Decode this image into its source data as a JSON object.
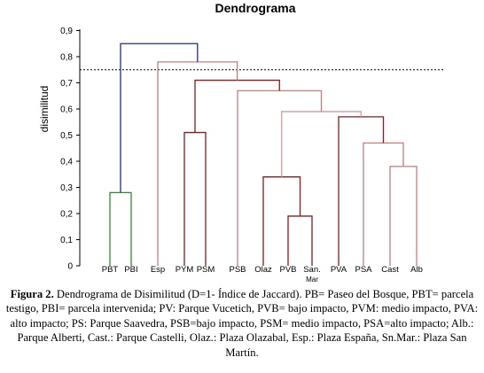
{
  "chart_data": {
    "type": "dendrogram",
    "title": "Dendrograma",
    "ylabel": "disimilitud",
    "ylim": [
      0,
      0.9
    ],
    "yticks": [
      "0",
      "0,1",
      "0,2",
      "0,3",
      "0,4",
      "0,5",
      "0,6",
      "0,7",
      "0,8",
      "0,9"
    ],
    "cut_height": 0.75,
    "leaves": [
      "PBT",
      "PBI",
      "Esp",
      "PYM",
      "PSM",
      "PSB",
      "Olaz",
      "PVB",
      "San. Mar",
      "PVA",
      "PSA",
      "Cast",
      "Alb"
    ],
    "merges": [
      {
        "a": "PBT",
        "b": "PBI",
        "height": 0.28,
        "color": "#2e8b2e"
      },
      {
        "a": "PVB",
        "b": "San. Mar",
        "height": 0.19,
        "color": "#8b1a1a"
      },
      {
        "a": "Olaz",
        "b": "PVB+San. Mar",
        "height": 0.34,
        "color": "#8b1a1a"
      },
      {
        "a": "Cast",
        "b": "Alb",
        "height": 0.38,
        "color": "#c97c7c"
      },
      {
        "a": "PSA",
        "b": "Cast+Alb",
        "height": 0.47,
        "color": "#c97c7c"
      },
      {
        "a": "PYM",
        "b": "PSM",
        "height": 0.51,
        "color": "#8b1a1a"
      },
      {
        "a": "PVA",
        "b": "PSA-group",
        "height": 0.57,
        "color": "#8b1a1a"
      },
      {
        "a": "Olaz-group",
        "b": "PVA-group",
        "height": 0.59,
        "color": "#d99a9a"
      },
      {
        "a": "PSB",
        "b": "Olaz…Alb",
        "height": 0.67,
        "color": "#c97c7c"
      },
      {
        "a": "PYM-group",
        "b": "PSB-group",
        "height": 0.71,
        "color": "#8b1a1a"
      },
      {
        "a": "Esp",
        "b": "PYM…Alb",
        "height": 0.78,
        "color": "#c97c7c"
      },
      {
        "a": "PBT-group",
        "b": "Esp-group",
        "height": 0.85,
        "color": "#1f2f8f"
      }
    ]
  },
  "caption": {
    "label": "Figura 2.",
    "text": " Dendrograma de Disimilitud (D=1- Índice de Jaccard). PB= Paseo del Bosque, PBT= parcela testigo, PBI= parcela intervenida; PV: Parque Vucetich, PVB= bajo impacto, PVM: medio impacto, PVA: alto impacto; PS: Parque Saavedra, PSB=bajo impacto, PSM= medio impacto, PSA=alto impacto; Alb.: Parque Alberti, Cast.: Parque Castelli, Olaz.: Plaza Olazabal, Esp.: Plaza España, Sn.Mar.: Plaza San Martín."
  }
}
